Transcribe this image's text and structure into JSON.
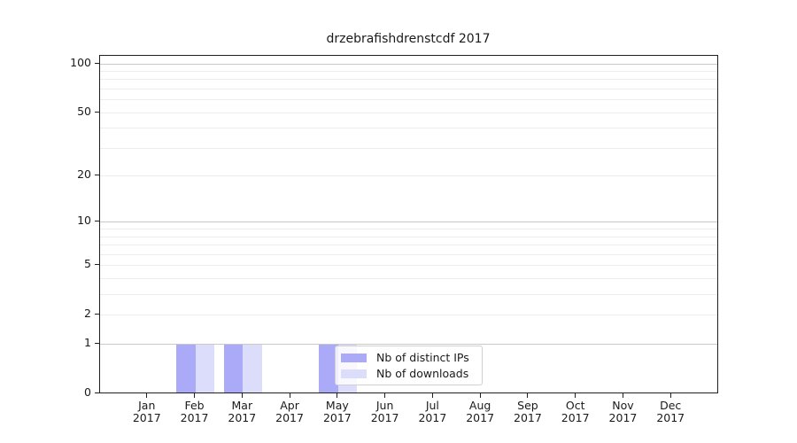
{
  "chart_data": {
    "type": "bar",
    "title": "drzebrafishdrenstcdf 2017",
    "categories": [
      "Jan",
      "Feb",
      "Mar",
      "Apr",
      "May",
      "Jun",
      "Jul",
      "Aug",
      "Sep",
      "Oct",
      "Nov",
      "Dec"
    ],
    "x_tick_second_line": "2017",
    "series": [
      {
        "name": "Nb of distinct IPs",
        "color": "#aaaaf8",
        "values": [
          0,
          1,
          1,
          0,
          1,
          0,
          0,
          0,
          0,
          0,
          0,
          0
        ]
      },
      {
        "name": "Nb of downloads",
        "color": "#dcdcfb",
        "values": [
          0,
          1,
          1,
          0,
          1,
          0,
          0,
          0,
          0,
          0,
          0,
          0
        ]
      }
    ],
    "yscale": "log1p",
    "ylim": [
      0,
      112
    ],
    "yticks": [
      0,
      1,
      2,
      5,
      10,
      20,
      50,
      100
    ],
    "y_major_gridlines": [
      1,
      10,
      100
    ],
    "y_minor_gridlines": [
      2,
      3,
      4,
      5,
      6,
      7,
      8,
      9,
      20,
      30,
      40,
      50,
      60,
      70,
      80,
      90
    ],
    "grid": true,
    "legend_position": "lower center"
  },
  "colors": {
    "bar_distinct_ips": "#aaaaf8",
    "bar_downloads": "#dcdcfb",
    "grid_major": "#c9c9c9",
    "grid_minor": "#ededed",
    "axis": "#1f1f1f",
    "text": "#1a1a1a",
    "legend_border": "#d0d0d0"
  }
}
